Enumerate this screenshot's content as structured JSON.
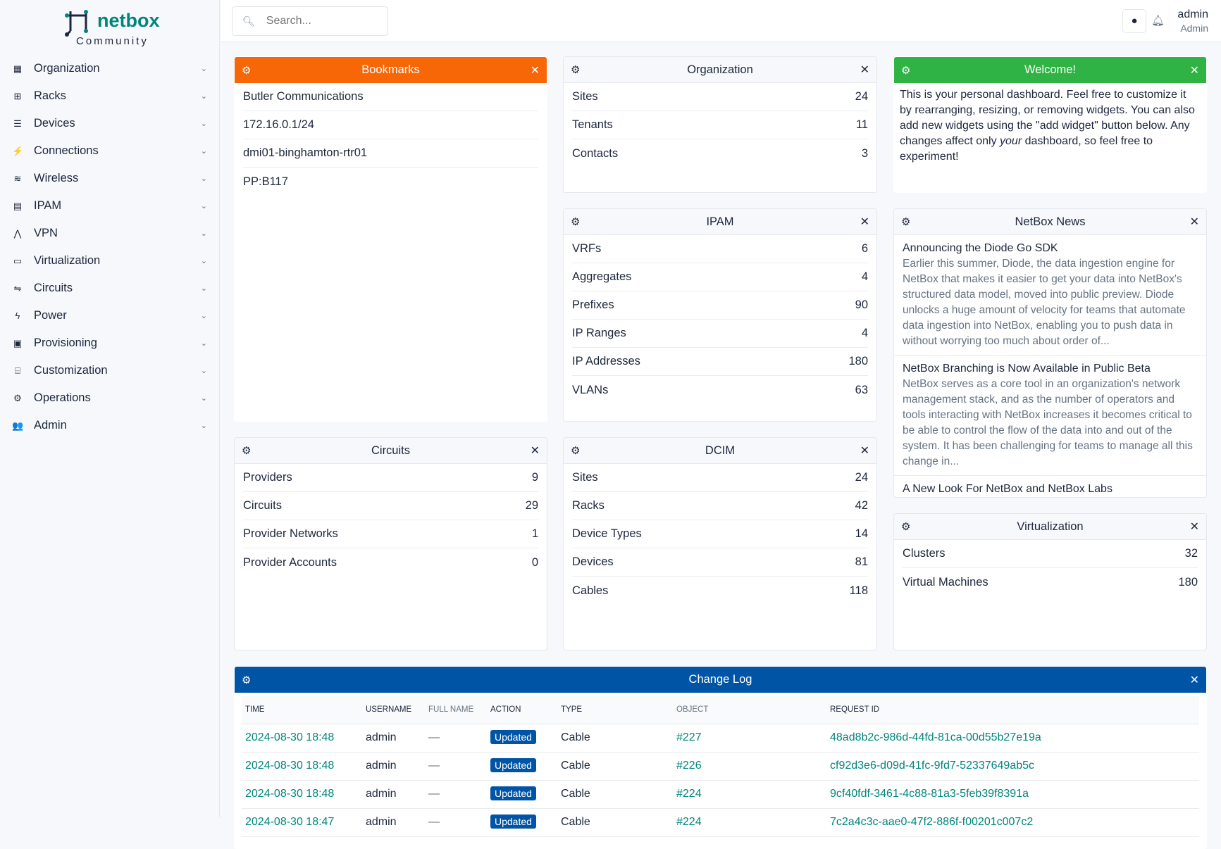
{
  "sidebar": {
    "logo_text": "netbox",
    "logo_sub": "Community",
    "items": [
      {
        "label": "Organization",
        "icon": "building-icon",
        "glyph": "▦"
      },
      {
        "label": "Racks",
        "icon": "rack-icon",
        "glyph": "⊞"
      },
      {
        "label": "Devices",
        "icon": "server-icon",
        "glyph": "☰"
      },
      {
        "label": "Connections",
        "icon": "plug-icon",
        "glyph": "⚡"
      },
      {
        "label": "Wireless",
        "icon": "wifi-icon",
        "glyph": "≋"
      },
      {
        "label": "IPAM",
        "icon": "ip-icon",
        "glyph": "▤"
      },
      {
        "label": "VPN",
        "icon": "vpn-icon",
        "glyph": "⋀"
      },
      {
        "label": "Virtualization",
        "icon": "monitor-icon",
        "glyph": "▭"
      },
      {
        "label": "Circuits",
        "icon": "circuit-icon",
        "glyph": "⇋"
      },
      {
        "label": "Power",
        "icon": "bolt-icon",
        "glyph": "ϟ"
      },
      {
        "label": "Provisioning",
        "icon": "file-icon",
        "glyph": "▣"
      },
      {
        "label": "Customization",
        "icon": "toolbox-icon",
        "glyph": "⌸"
      },
      {
        "label": "Operations",
        "icon": "cogs-icon",
        "glyph": "⚙"
      },
      {
        "label": "Admin",
        "icon": "users-icon",
        "glyph": "👥"
      }
    ]
  },
  "header": {
    "search_placeholder": "Search...",
    "user": "admin",
    "role": "Admin"
  },
  "colors": {
    "brand": "#00857d",
    "bookmarks": "#f76707",
    "welcome": "#2fb344",
    "changelog": "#0054a6"
  },
  "widgets": {
    "bookmarks": {
      "title": "Bookmarks",
      "items": [
        "Butler Communications",
        "172.16.0.1/24",
        "dmi01-binghamton-rtr01",
        "PP:B117"
      ]
    },
    "organization": {
      "title": "Organization",
      "rows": [
        {
          "label": "Sites",
          "value": "24"
        },
        {
          "label": "Tenants",
          "value": "11"
        },
        {
          "label": "Contacts",
          "value": "3"
        }
      ]
    },
    "welcome": {
      "title": "Welcome!",
      "text_before": "This is your personal dashboard. Feel free to customize it by rearranging, resizing, or removing widgets. You can also add new widgets using the \"add widget\" button below. Any changes affect only ",
      "text_em": "your",
      "text_after": " dashboard, so feel free to experiment!"
    },
    "ipam": {
      "title": "IPAM",
      "rows": [
        {
          "label": "VRFs",
          "value": "6"
        },
        {
          "label": "Aggregates",
          "value": "4"
        },
        {
          "label": "Prefixes",
          "value": "90"
        },
        {
          "label": "IP Ranges",
          "value": "4"
        },
        {
          "label": "IP Addresses",
          "value": "180"
        },
        {
          "label": "VLANs",
          "value": "63"
        }
      ]
    },
    "news": {
      "title": "NetBox News",
      "items": [
        {
          "title": "Announcing the Diode Go SDK",
          "body": "Earlier this summer, Diode, the data ingestion engine for NetBox that makes it easier to get your data into NetBox's structured data model, moved into public preview. Diode unlocks a huge amount of velocity for teams that automate data ingestion into NetBox, enabling you to push data in without worrying too much about order of..."
        },
        {
          "title": "NetBox Branching is Now Available in Public Beta",
          "body": "NetBox serves as a core tool in an organization's network management stack, and as the number of operators and tools interacting with NetBox increases it becomes critical to be able to control the flow of the data into and out of the system. It has been challenging for teams to manage all this change in..."
        },
        {
          "title": "A New Look For NetBox and NetBox Labs",
          "body": ""
        }
      ]
    },
    "circuits": {
      "title": "Circuits",
      "rows": [
        {
          "label": "Providers",
          "value": "9"
        },
        {
          "label": "Circuits",
          "value": "29"
        },
        {
          "label": "Provider Networks",
          "value": "1"
        },
        {
          "label": "Provider Accounts",
          "value": "0"
        }
      ]
    },
    "dcim": {
      "title": "DCIM",
      "rows": [
        {
          "label": "Sites",
          "value": "24"
        },
        {
          "label": "Racks",
          "value": "42"
        },
        {
          "label": "Device Types",
          "value": "14"
        },
        {
          "label": "Devices",
          "value": "81"
        },
        {
          "label": "Cables",
          "value": "118"
        }
      ]
    },
    "virtualization": {
      "title": "Virtualization",
      "rows": [
        {
          "label": "Clusters",
          "value": "32"
        },
        {
          "label": "Virtual Machines",
          "value": "180"
        }
      ]
    },
    "changelog": {
      "title": "Change Log",
      "columns": [
        "TIME",
        "USERNAME",
        "FULL NAME",
        "ACTION",
        "TYPE",
        "OBJECT",
        "REQUEST ID"
      ],
      "rows": [
        {
          "time": "2024-08-30 18:48",
          "user": "admin",
          "full": "—",
          "action": "Updated",
          "type": "Cable",
          "object": "#227",
          "request": "48ad8b2c-986d-44fd-81ca-00d55b27e19a"
        },
        {
          "time": "2024-08-30 18:48",
          "user": "admin",
          "full": "—",
          "action": "Updated",
          "type": "Cable",
          "object": "#226",
          "request": "cf92d3e6-d09d-41fc-9fd7-52337649ab5c"
        },
        {
          "time": "2024-08-30 18:48",
          "user": "admin",
          "full": "—",
          "action": "Updated",
          "type": "Cable",
          "object": "#224",
          "request": "9cf40fdf-3461-4c88-81a3-5feb39f8391a"
        },
        {
          "time": "2024-08-30 18:47",
          "user": "admin",
          "full": "—",
          "action": "Updated",
          "type": "Cable",
          "object": "#224",
          "request": "7c2a4c3c-aae0-47f2-886f-f00201c007c2"
        }
      ]
    }
  }
}
